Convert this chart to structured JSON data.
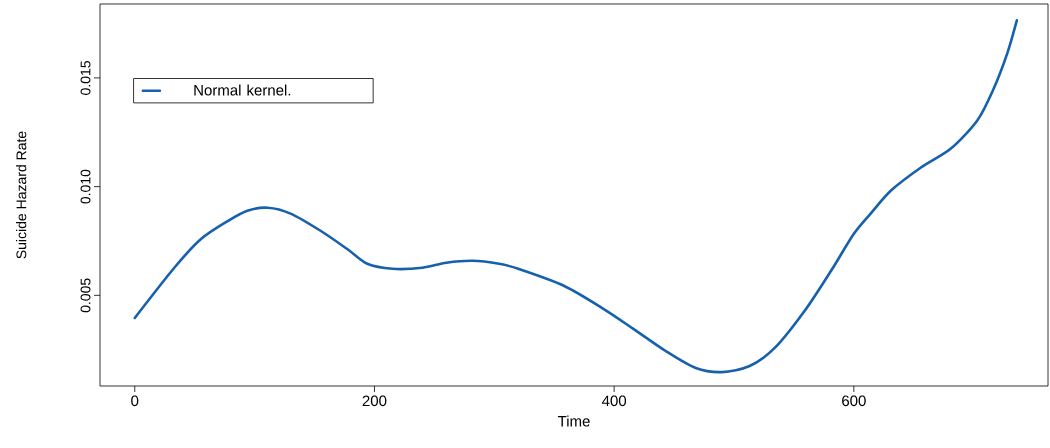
{
  "chart_data": {
    "type": "line",
    "xlabel": "Time",
    "ylabel": "Suicide Hazard Rate",
    "x": [
      0,
      33,
      55.5,
      78,
      94,
      111,
      130,
      155,
      177,
      194,
      215,
      240,
      260,
      282,
      304,
      320,
      358,
      391,
      416,
      443,
      468,
      490,
      513,
      534,
      559,
      581,
      600,
      614,
      631,
      656,
      681,
      703,
      716,
      728,
      736
    ],
    "series": [
      {
        "name": "Normal kernel.",
        "color": "#1660ad",
        "values": [
          0.00396,
          0.00627,
          0.0076,
          0.00843,
          0.00889,
          0.00903,
          0.00876,
          0.00797,
          0.00714,
          0.00645,
          0.00622,
          0.00627,
          0.0065,
          0.00659,
          0.00645,
          0.00622,
          0.00544,
          0.00438,
          0.00346,
          0.00244,
          0.00166,
          0.00147,
          0.00175,
          0.00258,
          0.00429,
          0.00613,
          0.00783,
          0.00876,
          0.00982,
          0.01088,
          0.01175,
          0.01304,
          0.01442,
          0.01613,
          0.01765
        ]
      }
    ],
    "xlim": [
      -29,
      762
    ],
    "ylim": [
      0.00083,
      0.0184
    ],
    "xticks": [
      0,
      200,
      400,
      600
    ],
    "yticks": [
      0.005,
      {
        "value": 0.01,
        "label": "0.010"
      },
      0.015
    ],
    "legend": "top left"
  }
}
